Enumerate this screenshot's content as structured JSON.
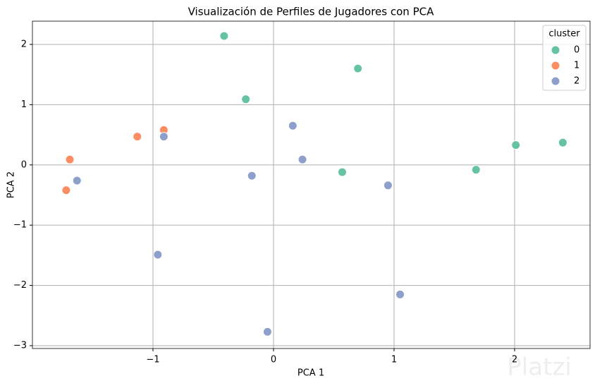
{
  "chart_data": {
    "type": "scatter",
    "title": "Visualización de Perfiles de Jugadores con PCA",
    "xlabel": "PCA 1",
    "ylabel": "PCA 2",
    "legend_title": "cluster",
    "legend": "upper right",
    "grid": true,
    "xlim": [
      -2.0,
      2.626
    ],
    "ylim": [
      -3.047,
      2.386
    ],
    "xticks": [
      {
        "value": -1,
        "label": "−1"
      },
      0,
      1,
      2
    ],
    "yticks": [
      {
        "value": -3,
        "label": "−3"
      },
      {
        "value": -2,
        "label": "−2"
      },
      {
        "value": -1,
        "label": "−1"
      },
      0,
      1,
      2
    ],
    "series": [
      {
        "name": "0",
        "color": "#66c2a5",
        "x": [
          -0.41,
          0.7,
          -0.23,
          0.57,
          1.68,
          2.01,
          2.4
        ],
        "values": [
          2.14,
          1.6,
          1.09,
          -0.12,
          -0.08,
          0.33,
          0.37
        ]
      },
      {
        "name": "1",
        "color": "#fc8d62",
        "x": [
          -1.69,
          -1.72,
          -1.13,
          -0.91
        ],
        "values": [
          0.09,
          -0.42,
          0.47,
          0.58
        ]
      },
      {
        "name": "2",
        "color": "#8da0cb",
        "x": [
          -1.63,
          -0.91,
          -0.96,
          -0.18,
          0.16,
          0.24,
          0.95,
          1.05,
          -0.05
        ],
        "values": [
          -0.26,
          0.47,
          -1.49,
          -0.18,
          0.65,
          0.09,
          -0.34,
          -2.15,
          -2.77
        ]
      }
    ],
    "watermark": "Platzi"
  }
}
